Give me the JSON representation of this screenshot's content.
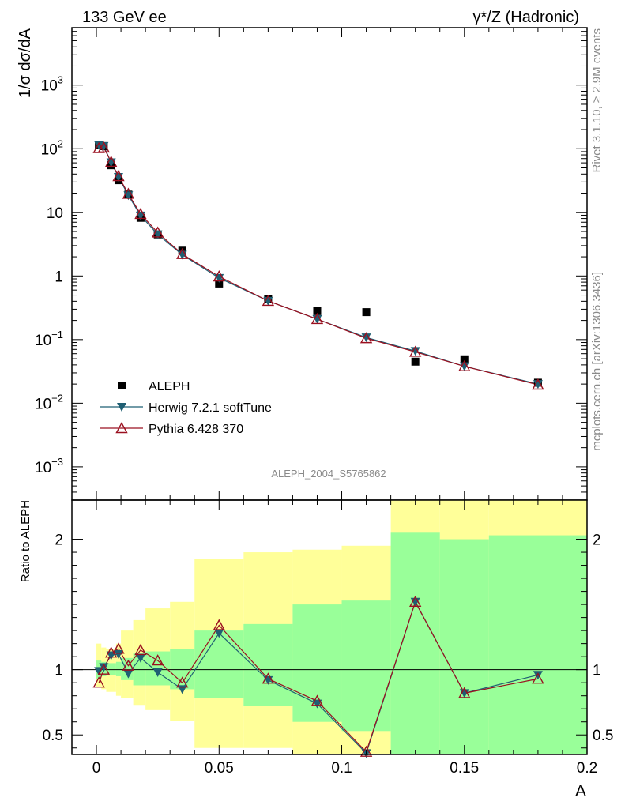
{
  "header": {
    "left": "133 GeV ee",
    "right": "γ*/Z (Hadronic)"
  },
  "side_text": {
    "top": "Rivet 3.1.10, ≥ 2.9M events",
    "bottom": "mcplots.cern.ch [arXiv:1306.3436]"
  },
  "watermark": "ALEPH_2004_S5765862",
  "chart_data": [
    {
      "type": "scatter",
      "title": "",
      "ylabel": "1/σ  dσ/dA",
      "yscale": "log",
      "xlim": [
        -0.01,
        0.2
      ],
      "ylim": [
        0.0003,
        8000
      ],
      "ytick_labels": [
        {
          "value": 0.001,
          "base": "10",
          "exp": "−3"
        },
        {
          "value": 0.01,
          "base": "10",
          "exp": "−2"
        },
        {
          "value": 0.1,
          "base": "10",
          "exp": "−1"
        },
        {
          "value": 1,
          "base": "1",
          "exp": ""
        },
        {
          "value": 10,
          "base": "10",
          "exp": ""
        },
        {
          "value": 100,
          "base": "10",
          "exp": "2"
        },
        {
          "value": 1000,
          "base": "10",
          "exp": "3"
        }
      ],
      "legend": {
        "placement": "lower-left",
        "entries": [
          {
            "label": "ALEPH",
            "marker": "square",
            "color": "#000000"
          },
          {
            "label": "Herwig 7.2.1 softTune",
            "marker": "triangle-down",
            "color": "#1f5f73"
          },
          {
            "label": "Pythia 6.428 370",
            "marker": "triangle-up-open",
            "color": "#9a1020"
          }
        ]
      },
      "series": [
        {
          "name": "ALEPH",
          "x": [
            0.001,
            0.003,
            0.006,
            0.009,
            0.013,
            0.018,
            0.025,
            0.035,
            0.05,
            0.07,
            0.09,
            0.11,
            0.13,
            0.15,
            0.18
          ],
          "y": [
            115,
            110,
            55,
            32,
            19,
            8.2,
            4.5,
            2.5,
            0.76,
            0.44,
            0.28,
            0.27,
            0.045,
            0.049,
            0.021
          ]
        },
        {
          "name": "Herwig 7.2.1 softTune",
          "x": [
            0.001,
            0.003,
            0.006,
            0.009,
            0.013,
            0.018,
            0.025,
            0.035,
            0.05,
            0.07,
            0.09,
            0.11,
            0.13,
            0.15,
            0.18
          ],
          "y": [
            114,
            110,
            61,
            36,
            18.5,
            8.9,
            4.5,
            2.15,
            0.93,
            0.405,
            0.21,
            0.108,
            0.066,
            0.038,
            0.02
          ]
        },
        {
          "name": "Pythia 6.428 370",
          "x": [
            0.001,
            0.003,
            0.006,
            0.009,
            0.013,
            0.018,
            0.025,
            0.035,
            0.05,
            0.07,
            0.09,
            0.11,
            0.13,
            0.15,
            0.18
          ],
          "y": [
            102,
            104,
            62,
            37,
            19.5,
            9.4,
            4.8,
            2.2,
            0.98,
            0.405,
            0.21,
            0.105,
            0.064,
            0.038,
            0.0195
          ]
        }
      ]
    },
    {
      "type": "line",
      "title": "",
      "xlabel": "A",
      "ylabel": "Ratio to ALEPH",
      "xlim": [
        -0.01,
        0.2
      ],
      "ylim": [
        0.35,
        2.3
      ],
      "xticks": [
        0,
        0.05,
        0.1,
        0.15,
        0.2
      ],
      "xtick_labels": [
        "0",
        "0.05",
        "0.1",
        "0.15",
        "0.2"
      ],
      "yticks": [
        0.5,
        1,
        2
      ],
      "ytick_labels": [
        "0.5",
        "1",
        "2"
      ],
      "reference_line": 1,
      "band_colors": {
        "stat": "#99ff99",
        "total": "#ffff99"
      },
      "bins": {
        "edges": [
          0,
          0.002,
          0.004,
          0.008,
          0.01,
          0.015,
          0.02,
          0.03,
          0.04,
          0.06,
          0.08,
          0.1,
          0.12,
          0.14,
          0.16,
          0.2
        ],
        "stat_lo": [
          0.93,
          0.95,
          0.96,
          0.95,
          0.92,
          0.88,
          0.88,
          0.85,
          0.78,
          0.72,
          0.6,
          0.53,
          0.35,
          0.35,
          0.35
        ],
        "stat_hi": [
          1.07,
          1.06,
          1.05,
          1.06,
          1.09,
          1.13,
          1.14,
          1.16,
          1.3,
          1.35,
          1.5,
          1.53,
          2.05,
          2.0,
          2.03
        ],
        "total_lo": [
          0.87,
          0.85,
          0.83,
          0.8,
          0.78,
          0.73,
          0.69,
          0.61,
          0.4,
          0.4,
          0.35,
          0.35,
          0.35,
          0.35,
          0.35
        ],
        "total_hi": [
          1.2,
          1.17,
          1.16,
          1.2,
          1.3,
          1.38,
          1.47,
          1.52,
          1.85,
          1.9,
          1.92,
          1.95,
          2.3,
          2.3,
          2.3
        ]
      },
      "series": [
        {
          "name": "Herwig 7.2.1 softTune",
          "x": [
            0.001,
            0.003,
            0.006,
            0.009,
            0.013,
            0.018,
            0.025,
            0.035,
            0.05,
            0.07,
            0.09,
            0.11,
            0.13,
            0.15,
            0.18
          ],
          "y": [
            0.99,
            1.02,
            1.11,
            1.12,
            0.97,
            1.09,
            0.98,
            0.85,
            1.28,
            0.92,
            0.74,
            0.36,
            1.52,
            0.82,
            0.96
          ]
        },
        {
          "name": "Pythia 6.428 370",
          "x": [
            0.001,
            0.003,
            0.006,
            0.009,
            0.013,
            0.018,
            0.025,
            0.035,
            0.05,
            0.07,
            0.09,
            0.11,
            0.13,
            0.15,
            0.18
          ],
          "y": [
            0.9,
            1.0,
            1.13,
            1.16,
            1.03,
            1.15,
            1.07,
            0.9,
            1.34,
            0.93,
            0.76,
            0.37,
            1.52,
            0.82,
            0.93
          ]
        }
      ]
    }
  ]
}
